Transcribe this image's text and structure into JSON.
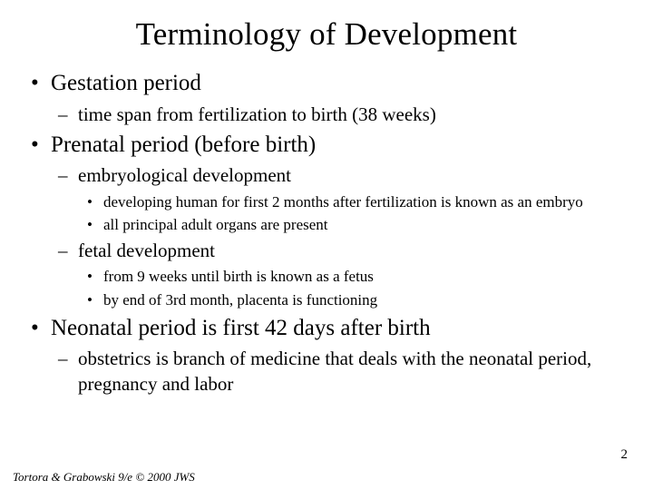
{
  "title": "Terminology of Development",
  "bullets": {
    "b1": "Gestation period",
    "b1_1": "time span from fertilization to birth (38 weeks)",
    "b2": "Prenatal period (before birth)",
    "b2_1": "embryological development",
    "b2_1_a": "developing human for first 2 months after fertilization is known as an embryo",
    "b2_1_b": "all principal adult organs are present",
    "b2_2": "fetal development",
    "b2_2_a": "from 9 weeks until birth is known as a fetus",
    "b2_2_b": "by end of 3rd month, placenta is functioning",
    "b3": "Neonatal period is first 42 days after birth",
    "b3_1": "obstetrics is branch of medicine that deals with the neonatal period, pregnancy and labor"
  },
  "footer": "Tortora & Grabowski 9/e © 2000 JWS",
  "page_number": "2",
  "colors": {
    "background": "#ffffff",
    "text": "#000000"
  },
  "fonts": {
    "family": "Times New Roman",
    "title_size_pt": 35,
    "lvl1_size_pt": 25,
    "lvl2_size_pt": 21,
    "lvl3_size_pt": 17,
    "footer_size_pt": 13
  }
}
